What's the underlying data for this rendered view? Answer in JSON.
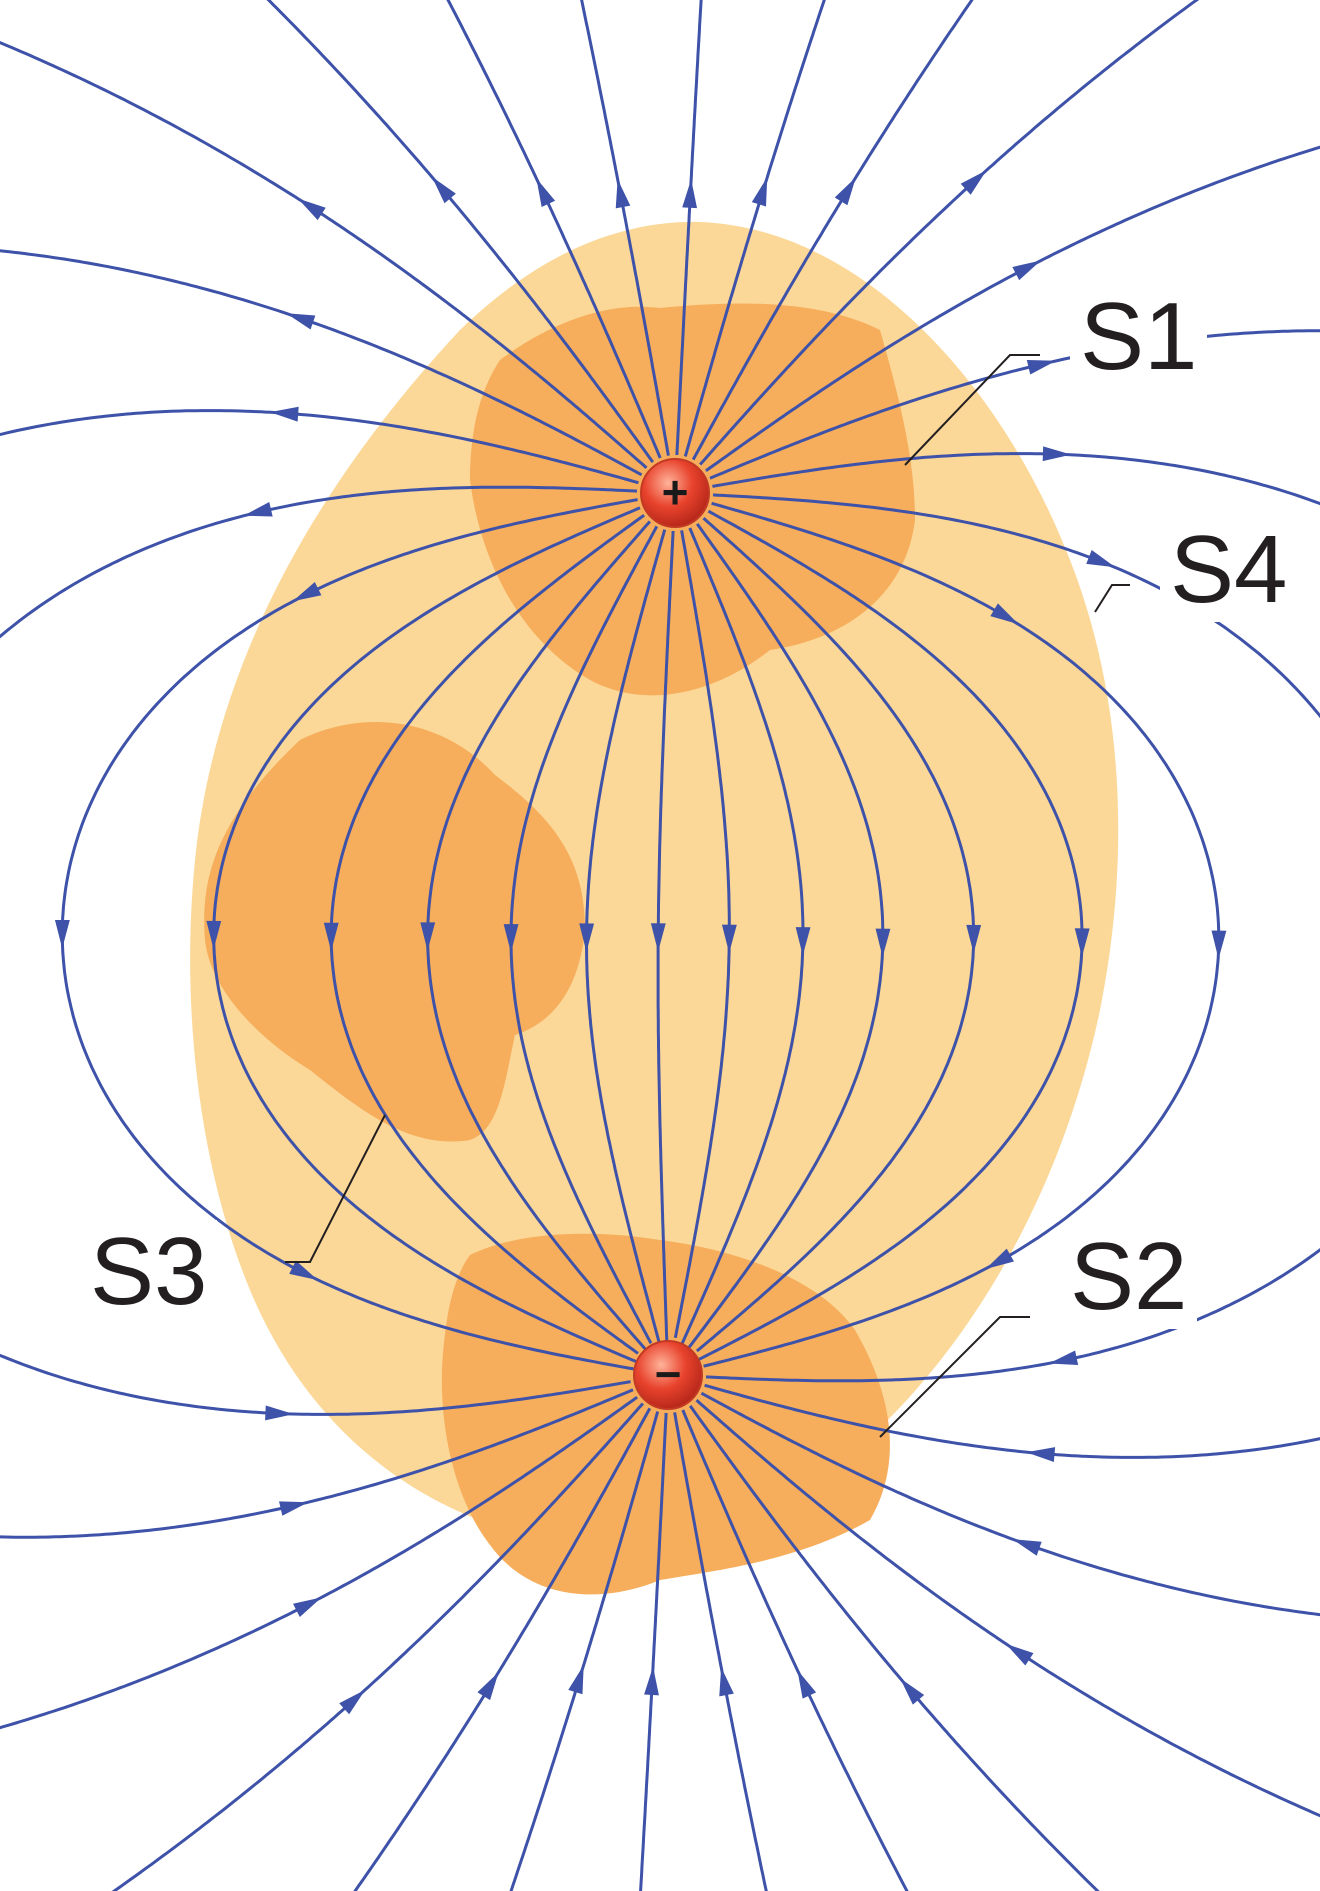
{
  "diagram": {
    "colors": {
      "field_line": "#3d52a8",
      "outer_region": "#fbd898",
      "inner_region": "#f6ae5c",
      "charge_fill": "#e8432d",
      "charge_highlight": "#ffb39a",
      "sign": "#1a1a1a"
    },
    "charges": {
      "positive": {
        "symbol": "+"
      },
      "negative": {
        "symbol": "−"
      }
    },
    "surfaces": {
      "s1": {
        "label": "S1"
      },
      "s2": {
        "label": "S2"
      },
      "s3": {
        "label": "S3"
      },
      "s4": {
        "label": "S4"
      }
    }
  }
}
